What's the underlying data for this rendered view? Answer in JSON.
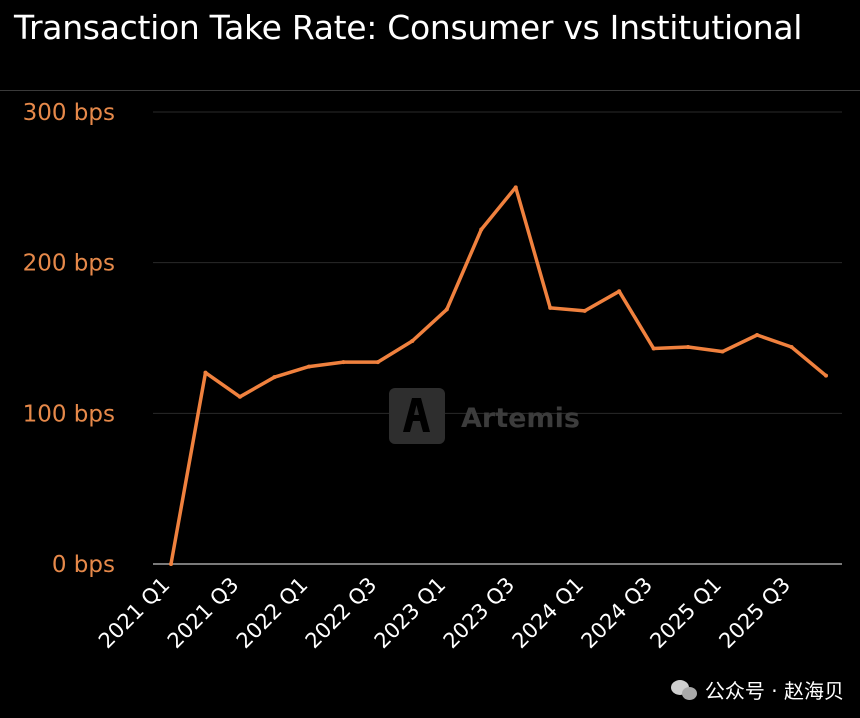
{
  "title": "Transaction Take Rate: Consumer vs Institutional",
  "watermark": {
    "text": "Artemis",
    "icon": "artemis-logo-icon"
  },
  "footer": {
    "icon": "wechat-icon",
    "text": "公众号 · 赵海贝"
  },
  "colors": {
    "background": "#000000",
    "line": "#f0813e",
    "y_tick_text": "#e6894a",
    "x_tick_text": "#ffffff",
    "grid": "#2a2a2a",
    "baseline": "#7a7a7a"
  },
  "chart_data": {
    "type": "line",
    "title": "Transaction Take Rate: Consumer vs Institutional",
    "xlabel": "",
    "ylabel": "",
    "x": [
      "2021 Q1",
      "2021 Q2",
      "2021 Q3",
      "2021 Q4",
      "2022 Q1",
      "2022 Q2",
      "2022 Q3",
      "2022 Q4",
      "2023 Q1",
      "2023 Q2",
      "2023 Q3",
      "2023 Q4",
      "2024 Q1",
      "2024 Q2",
      "2024 Q3",
      "2024 Q4",
      "2025 Q1",
      "2025 Q2",
      "2025 Q3",
      "2025 Q4"
    ],
    "x_tick_labels": [
      "2021 Q1",
      "2021 Q3",
      "2022 Q1",
      "2022 Q3",
      "2023 Q1",
      "2023 Q3",
      "2024 Q1",
      "2024 Q3",
      "2025 Q1",
      "2025 Q3"
    ],
    "series": [
      {
        "values": [
          0,
          127,
          111,
          124,
          131,
          134,
          134,
          148,
          169,
          222,
          250,
          170,
          168,
          181,
          143,
          144,
          141,
          152,
          144,
          125
        ]
      }
    ],
    "ylim": [
      0,
      300
    ],
    "y_ticks": [
      0,
      100,
      200,
      300
    ],
    "y_tick_labels": [
      "0 bps",
      "100 bps",
      "200 bps",
      "300 bps"
    ],
    "grid": true,
    "legend": "none"
  }
}
